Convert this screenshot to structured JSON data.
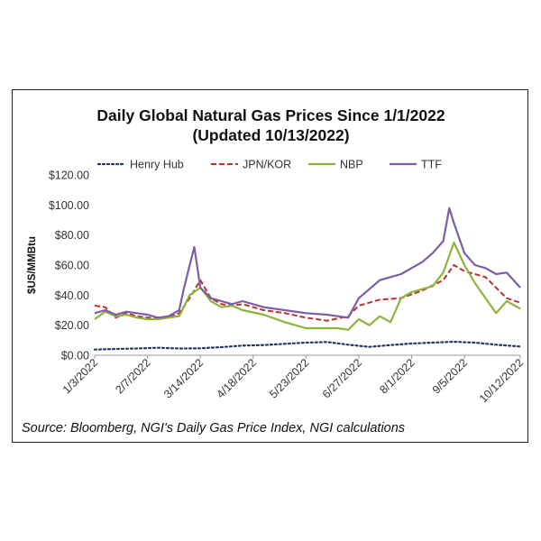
{
  "chart_data": {
    "type": "line",
    "title_line1": "Daily Global Natural Gas Prices Since 1/1/2022",
    "title_line2": "(Updated 10/13/2022)",
    "ylabel": "$US/MMBtu",
    "xlabel": "",
    "ylim": [
      0,
      120
    ],
    "y_ticks": [
      "$0.00",
      "$20.00",
      "$40.00",
      "$60.00",
      "$80.00",
      "$100.00",
      "$120.00"
    ],
    "x_ticks": [
      "1/3/2022",
      "2/7/2022",
      "3/14/2022",
      "4/18/2022",
      "5/23/2022",
      "6/27/2022",
      "8/1/2022",
      "9/5/2022",
      "10/12/2022"
    ],
    "grid": "none",
    "legend_position": "top",
    "source": "Source: Bloomberg, NGI's Daily Gas Price Index, NGI calculations",
    "series": [
      {
        "name": "Henry Hub",
        "color": "#1f3864",
        "style": "dotted",
        "x": [
          "1/3/2022",
          "1/17/2022",
          "1/31/2022",
          "2/14/2022",
          "2/28/2022",
          "3/14/2022",
          "3/28/2022",
          "4/11/2022",
          "4/25/2022",
          "5/9/2022",
          "5/23/2022",
          "6/6/2022",
          "6/20/2022",
          "7/4/2022",
          "7/18/2022",
          "8/1/2022",
          "8/15/2022",
          "8/29/2022",
          "9/12/2022",
          "9/26/2022",
          "10/12/2022"
        ],
        "values": [
          3.8,
          4.2,
          4.5,
          5.0,
          4.5,
          4.6,
          5.4,
          6.4,
          6.8,
          7.6,
          8.4,
          8.8,
          7.0,
          5.6,
          6.8,
          7.8,
          8.4,
          9.0,
          8.4,
          7.0,
          5.8
        ]
      },
      {
        "name": "JPN/KOR",
        "color": "#c0302b",
        "style": "dashed",
        "x": [
          "1/3/2022",
          "1/10/2022",
          "1/17/2022",
          "1/24/2022",
          "1/31/2022",
          "2/7/2022",
          "2/14/2022",
          "2/21/2022",
          "2/28/2022",
          "3/7/2022",
          "3/14/2022",
          "3/21/2022",
          "3/28/2022",
          "4/4/2022",
          "4/11/2022",
          "4/25/2022",
          "5/9/2022",
          "5/23/2022",
          "6/6/2022",
          "6/20/2022",
          "6/27/2022",
          "7/11/2022",
          "7/25/2022",
          "8/8/2022",
          "8/22/2022",
          "8/29/2022",
          "9/5/2022",
          "9/12/2022",
          "9/19/2022",
          "9/26/2022",
          "10/3/2022",
          "10/12/2022"
        ],
        "values": [
          33,
          32,
          25,
          28,
          26,
          25,
          25,
          25,
          28,
          38,
          50,
          38,
          34,
          33,
          34,
          30,
          28,
          25,
          23,
          26,
          33,
          37,
          38,
          43,
          50,
          60,
          56,
          54,
          52,
          45,
          38,
          35
        ]
      },
      {
        "name": "NBP",
        "color": "#8db33a",
        "style": "solid",
        "x": [
          "1/3/2022",
          "1/10/2022",
          "1/17/2022",
          "1/24/2022",
          "1/31/2022",
          "2/7/2022",
          "2/14/2022",
          "2/21/2022",
          "2/28/2022",
          "3/7/2022",
          "3/14/2022",
          "3/21/2022",
          "3/28/2022",
          "4/4/2022",
          "4/11/2022",
          "4/25/2022",
          "5/9/2022",
          "5/23/2022",
          "6/6/2022",
          "6/13/2022",
          "6/20/2022",
          "6/27/2022",
          "7/4/2022",
          "7/11/2022",
          "7/18/2022",
          "7/25/2022",
          "8/1/2022",
          "8/8/2022",
          "8/15/2022",
          "8/22/2022",
          "8/29/2022",
          "9/5/2022",
          "9/12/2022",
          "9/19/2022",
          "9/26/2022",
          "10/3/2022",
          "10/12/2022"
        ],
        "values": [
          24,
          29,
          26,
          27,
          25,
          24,
          24,
          25,
          26,
          40,
          45,
          36,
          32,
          33,
          30,
          27,
          22,
          18,
          18,
          18,
          17,
          24,
          20,
          26,
          22,
          38,
          42,
          44,
          46,
          55,
          75,
          60,
          48,
          38,
          28,
          36,
          31
        ]
      },
      {
        "name": "TTF",
        "color": "#7b5ea7",
        "style": "solid",
        "x": [
          "1/3/2022",
          "1/10/2022",
          "1/17/2022",
          "1/24/2022",
          "1/31/2022",
          "2/7/2022",
          "2/14/2022",
          "2/21/2022",
          "2/28/2022",
          "3/3/2022",
          "3/7/2022",
          "3/10/2022",
          "3/14/2022",
          "3/21/2022",
          "3/28/2022",
          "4/4/2022",
          "4/11/2022",
          "4/25/2022",
          "5/9/2022",
          "5/23/2022",
          "6/6/2022",
          "6/13/2022",
          "6/20/2022",
          "6/27/2022",
          "7/4/2022",
          "7/11/2022",
          "7/18/2022",
          "7/25/2022",
          "8/1/2022",
          "8/8/2022",
          "8/15/2022",
          "8/22/2022",
          "8/26/2022",
          "8/29/2022",
          "9/5/2022",
          "9/12/2022",
          "9/19/2022",
          "9/26/2022",
          "10/3/2022",
          "10/12/2022"
        ],
        "values": [
          28,
          30,
          27,
          29,
          28,
          27,
          25,
          26,
          30,
          44,
          60,
          72,
          45,
          38,
          36,
          34,
          36,
          32,
          30,
          28,
          27,
          26,
          25,
          38,
          44,
          50,
          52,
          54,
          58,
          62,
          68,
          76,
          98,
          88,
          68,
          60,
          58,
          54,
          55,
          45
        ]
      }
    ]
  }
}
